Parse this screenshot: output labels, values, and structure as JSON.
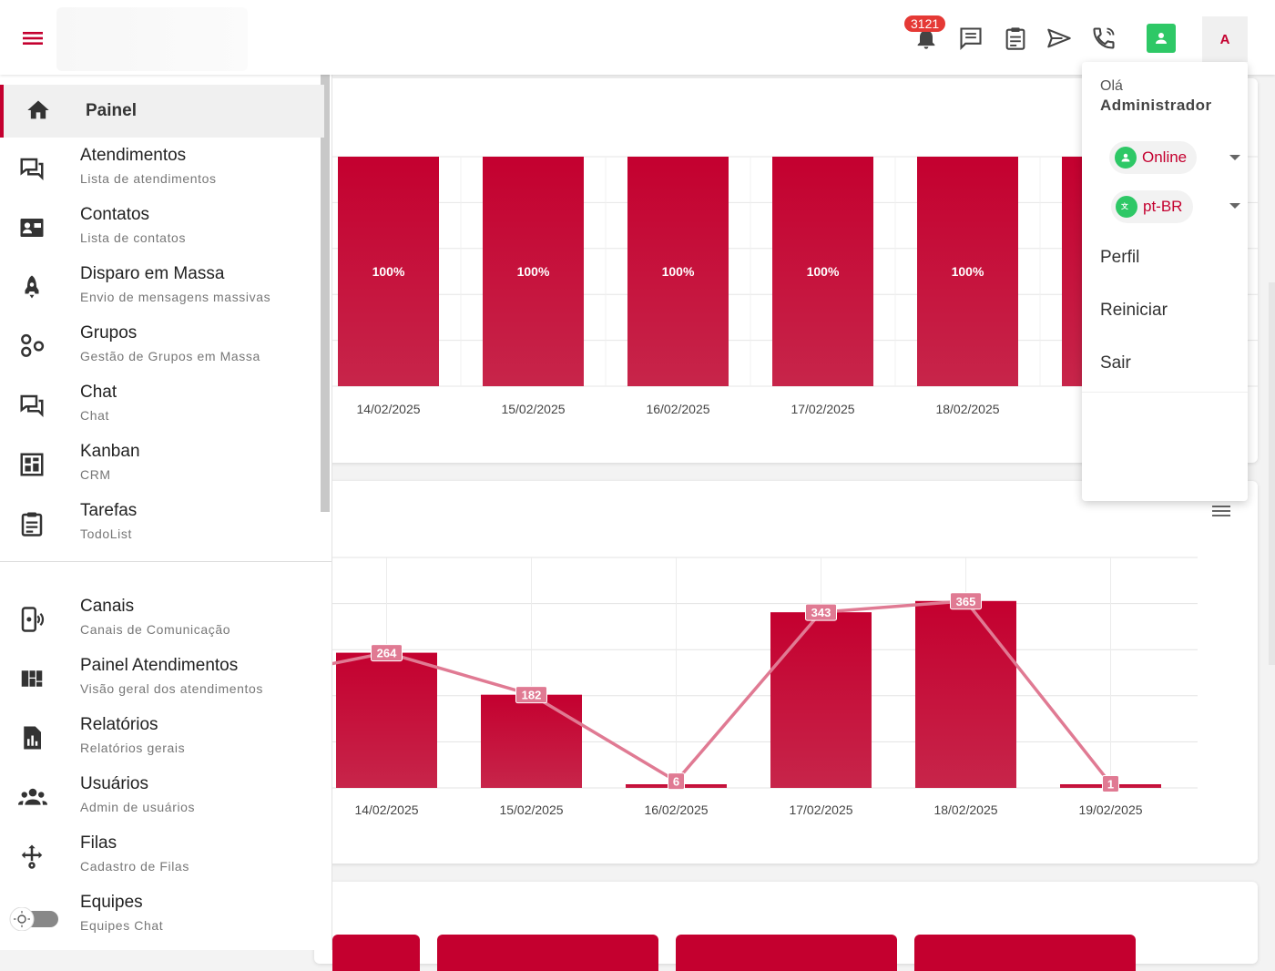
{
  "topbar": {
    "notifications_count": "3121",
    "avatar_letter": "A",
    "icons": [
      "menu-icon",
      "bell-icon",
      "chat-icon",
      "clipboard-icon",
      "send-icon",
      "phone-icon",
      "online-status-icon"
    ]
  },
  "sidebar": {
    "active": {
      "label": "Painel"
    },
    "items": [
      {
        "label": "Atendimentos",
        "sub": "Lista de atendimentos"
      },
      {
        "label": "Contatos",
        "sub": "Lista de contatos"
      },
      {
        "label": "Disparo em Massa",
        "sub": "Envio de mensagens massivas"
      },
      {
        "label": "Grupos",
        "sub": "Gestão de Grupos em Massa"
      },
      {
        "label": "Chat",
        "sub": "Chat"
      },
      {
        "label": "Kanban",
        "sub": "CRM"
      },
      {
        "label": "Tarefas",
        "sub": "TodoList"
      },
      {
        "label": "Canais",
        "sub": "Canais de Comunicação"
      },
      {
        "label": "Painel Atendimentos",
        "sub": "Visão geral dos atendimentos"
      },
      {
        "label": "Relatórios",
        "sub": "Relatórios gerais"
      },
      {
        "label": "Usuários",
        "sub": "Admin de usuários"
      },
      {
        "label": "Filas",
        "sub": "Cadastro de Filas"
      },
      {
        "label": "Equipes",
        "sub": "Equipes Chat"
      }
    ]
  },
  "user_menu": {
    "greeting": "Olá",
    "name": "Administrador",
    "status": "Online",
    "language": "pt-BR",
    "items": [
      "Perfil",
      "Reiniciar",
      "Sair"
    ]
  },
  "colors": {
    "brand": "#c4002f",
    "online": "#2ec866",
    "line": "#e07a93"
  },
  "chart_data": [
    {
      "type": "bar",
      "categories": [
        "14/02/2025",
        "15/02/2025",
        "16/02/2025",
        "17/02/2025",
        "18/02/2025"
      ],
      "values": [
        100,
        100,
        100,
        100,
        100
      ],
      "labels": [
        "100%",
        "100%",
        "100%",
        "100%",
        "100%"
      ],
      "ylim": [
        0,
        100
      ],
      "grid": true
    },
    {
      "type": "bar",
      "categories": [
        "14/02/2025",
        "15/02/2025",
        "16/02/2025",
        "17/02/2025",
        "18/02/2025",
        "19/02/2025"
      ],
      "series": [
        {
          "type": "bar",
          "values": [
            264,
            182,
            6,
            343,
            365,
            1
          ]
        },
        {
          "type": "line",
          "values": [
            264,
            182,
            6,
            343,
            365,
            1
          ]
        }
      ],
      "ylim": [
        0,
        450
      ],
      "grid": true
    }
  ]
}
